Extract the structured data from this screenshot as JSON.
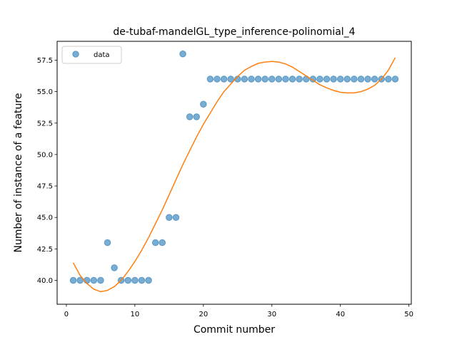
{
  "chart_data": {
    "type": "scatter",
    "title": "de-tubaf-mandelGL_type_inference-polinomial_4",
    "xlabel": "Commit number",
    "ylabel": "Number of instance of a feature",
    "xlim": [
      -1.35,
      50.35
    ],
    "ylim": [
      38.1,
      59.0
    ],
    "xticks": [
      0,
      10,
      20,
      30,
      40,
      50
    ],
    "xtick_labels": [
      "0",
      "10",
      "20",
      "30",
      "40",
      "50"
    ],
    "yticks": [
      40.0,
      42.5,
      45.0,
      47.5,
      50.0,
      52.5,
      55.0,
      57.5
    ],
    "ytick_labels": [
      "40.0",
      "42.5",
      "45.0",
      "47.5",
      "50.0",
      "52.5",
      "55.0",
      "57.5"
    ],
    "grid": false,
    "legend_position": "top-left",
    "series": [
      {
        "name": "data",
        "kind": "scatter",
        "color": "#1f77b4",
        "x": [
          1,
          2,
          3,
          4,
          5,
          6,
          7,
          8,
          9,
          10,
          11,
          12,
          13,
          14,
          15,
          16,
          17,
          18,
          19,
          20,
          21,
          22,
          23,
          24,
          25,
          26,
          27,
          28,
          29,
          30,
          31,
          32,
          33,
          34,
          35,
          36,
          37,
          38,
          39,
          40,
          41,
          42,
          43,
          44,
          45,
          46,
          47,
          48
        ],
        "y": [
          40,
          40,
          40,
          40,
          40,
          43,
          41,
          40,
          40,
          40,
          40,
          40,
          43,
          43,
          45,
          45,
          58,
          53,
          53,
          54,
          56,
          56,
          56,
          56,
          56,
          56,
          56,
          56,
          56,
          56,
          56,
          56,
          56,
          56,
          56,
          56,
          56,
          56,
          56,
          56,
          56,
          56,
          56,
          56,
          56,
          56,
          56,
          56
        ]
      },
      {
        "name": "",
        "kind": "line",
        "color": "#ff7f0e",
        "x": [
          1,
          2,
          3,
          4,
          5,
          6,
          7,
          8,
          9,
          10,
          11,
          12,
          13,
          14,
          15,
          16,
          17,
          18,
          19,
          20,
          21,
          22,
          23,
          24,
          25,
          26,
          27,
          28,
          29,
          30,
          31,
          32,
          33,
          34,
          35,
          36,
          37,
          38,
          39,
          40,
          41,
          42,
          43,
          44,
          45,
          46,
          47,
          48
        ],
        "y": [
          41.4,
          40.4,
          39.75,
          39.3,
          39.1,
          39.2,
          39.5,
          40.0,
          40.7,
          41.5,
          42.4,
          43.4,
          44.5,
          45.6,
          46.8,
          48.0,
          49.2,
          50.3,
          51.4,
          52.4,
          53.3,
          54.2,
          55.0,
          55.6,
          56.2,
          56.7,
          57.0,
          57.25,
          57.35,
          57.4,
          57.35,
          57.2,
          56.95,
          56.6,
          56.25,
          55.9,
          55.55,
          55.3,
          55.1,
          54.95,
          54.9,
          54.9,
          55.0,
          55.2,
          55.5,
          56.0,
          56.7,
          57.7
        ]
      }
    ]
  }
}
